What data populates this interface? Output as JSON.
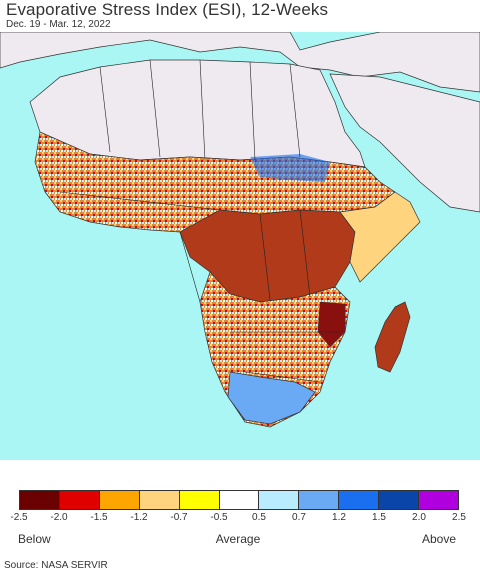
{
  "header": {
    "title": "Evaporative Stress Index (ESI), 12-Weeks",
    "date_range": "Dec. 19 - Mar. 12, 2022"
  },
  "map": {
    "region": "Africa",
    "ocean_color": "#aaf6f4",
    "no_data_color": "#efe9f0",
    "border_color": "#111111"
  },
  "legend": {
    "colors": [
      "#6b0000",
      "#e00000",
      "#ffa500",
      "#ffd47f",
      "#ffff00",
      "#ffffff",
      "#b9ecff",
      "#6aaaf5",
      "#1a6ff0",
      "#0a46aa",
      "#b000e0"
    ],
    "ticks": [
      "-2.5",
      "-2.0",
      "-1.5",
      "-1.2",
      "-0.7",
      "-0.5",
      "0.5",
      "0.7",
      "1.2",
      "1.5",
      "2.0",
      "2.5"
    ],
    "label_low": "Below",
    "label_mid": "Average",
    "label_high": "Above"
  },
  "footer": {
    "source": "Source: NASA SERVIR"
  }
}
